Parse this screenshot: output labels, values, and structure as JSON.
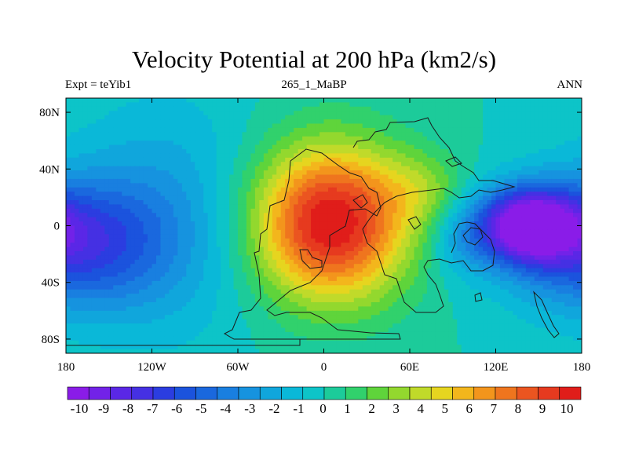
{
  "title": "Velocity Potential at 200 hPa (km2/s)",
  "subtitle_left": "Expt = teYib1",
  "subtitle_center": "265_1_MaBP",
  "subtitle_right": "ANN",
  "map": {
    "lon_range": [
      -180,
      180
    ],
    "lat_range": [
      -90,
      90
    ],
    "x_ticks": [
      {
        "lon": -180,
        "label": "180"
      },
      {
        "lon": -120,
        "label": "120W"
      },
      {
        "lon": -60,
        "label": "60W"
      },
      {
        "lon": 0,
        "label": "0"
      },
      {
        "lon": 60,
        "label": "60E"
      },
      {
        "lon": 120,
        "label": "120E"
      },
      {
        "lon": 180,
        "label": "180"
      }
    ],
    "y_ticks": [
      {
        "lat": 80,
        "label": "80N"
      },
      {
        "lat": 40,
        "label": "40N"
      },
      {
        "lat": 0,
        "label": "0"
      },
      {
        "lat": -40,
        "label": "40S"
      },
      {
        "lat": -80,
        "label": "80S"
      }
    ],
    "field_centers": [
      {
        "name": "divergence-max",
        "lon": 5,
        "lat": 0,
        "value": 10.5
      },
      {
        "name": "convergence-min",
        "lon": 140,
        "lat": 0,
        "value": -10.5
      },
      {
        "name": "secondary-min",
        "lon": -178,
        "lat": -15,
        "value": -7
      }
    ]
  },
  "colorbar": {
    "levels": [
      "-10",
      "-9",
      "-8",
      "-7",
      "-6",
      "-5",
      "-4",
      "-3",
      "-2",
      "-1",
      "0",
      "1",
      "2",
      "3",
      "4",
      "5",
      "6",
      "7",
      "8",
      "9",
      "10"
    ],
    "colors": [
      "#8a1ce8",
      "#7222e8",
      "#5a27e6",
      "#4530e3",
      "#2b3de0",
      "#1b53dd",
      "#1a68de",
      "#197fe0",
      "#1693df",
      "#10a6dc",
      "#0ab8d8",
      "#0dc4c8",
      "#1ccb9a",
      "#31d16c",
      "#5fd43b",
      "#93d82e",
      "#c0da2a",
      "#e6d51f",
      "#f3b61c",
      "#f3951c",
      "#ef751e",
      "#eb5520",
      "#e63a1f",
      "#e01d1a"
    ]
  }
}
